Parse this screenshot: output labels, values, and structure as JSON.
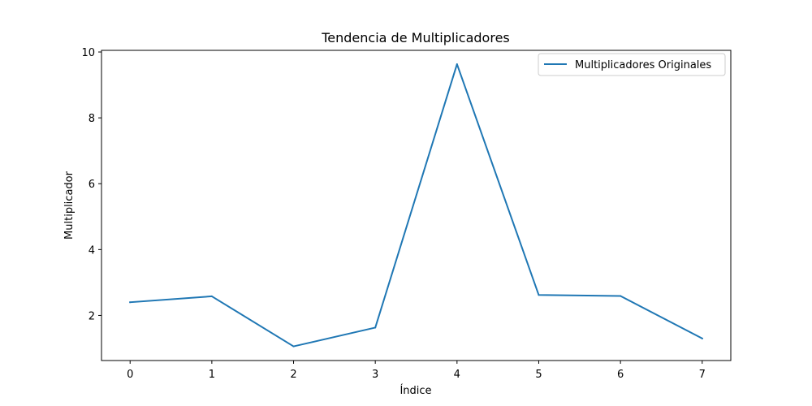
{
  "chart_data": {
    "type": "line",
    "title": "Tendencia de Multiplicadores",
    "xlabel": "Índice",
    "ylabel": "Multiplicador",
    "x": [
      0,
      1,
      2,
      3,
      4,
      5,
      6,
      7
    ],
    "series": [
      {
        "name": "Multiplicadores Originales",
        "values": [
          2.4,
          2.58,
          1.06,
          1.63,
          9.63,
          2.62,
          2.59,
          1.3
        ],
        "color": "#1f77b4"
      }
    ],
    "xlim": [
      -0.35,
      7.35
    ],
    "ylim": [
      0.63,
      10.05
    ],
    "x_ticks": [
      0,
      1,
      2,
      3,
      4,
      5,
      6,
      7
    ],
    "y_ticks": [
      2,
      4,
      6,
      8,
      10
    ],
    "grid": false,
    "legend_position": "top-right"
  }
}
